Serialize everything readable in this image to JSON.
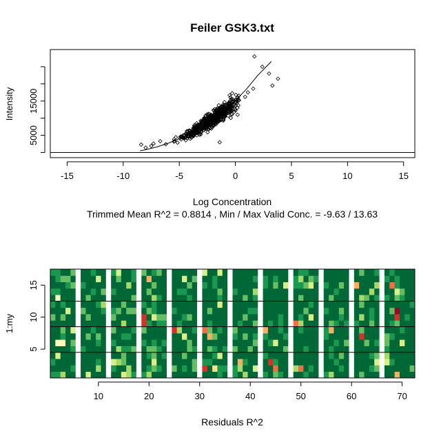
{
  "chart_data": [
    {
      "type": "scatter",
      "title": "Feiler GSK3.txt",
      "xlabel": "Log Concentration",
      "subtitle": "Trimmed Mean R^2 = 0.8814 , Min / Max Valid Conc. = -9.63 / 13.63",
      "ylabel": "Intensity",
      "xlim": [
        -16.5,
        16
      ],
      "ylim": [
        -1500,
        30000
      ],
      "x_ticks": [
        -15,
        -10,
        -5,
        0,
        5,
        10,
        15
      ],
      "y_ticks": [
        5000,
        15000
      ],
      "y_minor_ticks": [
        0,
        10000,
        20000,
        25000
      ],
      "point_shape": "open-diamond",
      "fit_curve": {
        "x": [
          -8.5,
          -8,
          -7,
          -6,
          -5,
          -4,
          -3,
          -2,
          -1,
          0,
          1,
          2,
          3.2
        ],
        "y": [
          500,
          800,
          1600,
          2700,
          4000,
          5600,
          7500,
          9700,
          12200,
          15100,
          18500,
          22500,
          26500
        ]
      },
      "outliers": {
        "x": [
          -8.4,
          -8.0,
          -7.5,
          -7.3,
          -6.7,
          -6.2,
          -2.8,
          -1.4,
          0.2,
          1.7,
          2.4,
          3.0,
          3.8,
          3.3
        ],
        "y": [
          2300,
          1400,
          1900,
          2600,
          3300,
          2400,
          10000,
          3000,
          11000,
          28000,
          25000,
          23000,
          21500,
          19500
        ]
      },
      "n_points": 700
    },
    {
      "type": "heatmap",
      "title": "",
      "xlabel": "Residuals R^2",
      "ylabel": "1:my",
      "xlim": [
        0.5,
        72.5
      ],
      "ylim": [
        0.5,
        17.5
      ],
      "x_ticks": [
        10,
        20,
        30,
        40,
        50,
        60,
        70
      ],
      "y_ticks": [
        5,
        10,
        15
      ],
      "columns": 72,
      "rows": 17,
      "white_columns": [
        6,
        12,
        18,
        24,
        30,
        36,
        42,
        48,
        54,
        60,
        66
      ],
      "row_divider_lines": [
        4.5,
        8.5,
        12.5
      ],
      "color_scale": [
        "#006837",
        "#1a9850",
        "#66bd63",
        "#a6d96a",
        "#d9ef8b",
        "#ffffbf",
        "#fee08b",
        "#fdae61",
        "#f46d43",
        "#d73027",
        "#a50026"
      ],
      "dominant_color": "#006837",
      "highlight_cells": [
        {
          "col": 19,
          "row": 10,
          "color": "#d73027"
        },
        {
          "col": 19,
          "row": 9,
          "color": "#d73027"
        },
        {
          "col": 20,
          "row": 16,
          "color": "#fdae61"
        },
        {
          "col": 25,
          "row": 8,
          "color": "#d73027"
        },
        {
          "col": 31,
          "row": 8,
          "color": "#f46d43"
        },
        {
          "col": 32,
          "row": 7,
          "color": "#fdae61"
        },
        {
          "col": 31,
          "row": 2,
          "color": "#d73027"
        },
        {
          "col": 33,
          "row": 2,
          "color": "#fee08b"
        },
        {
          "col": 38,
          "row": 3,
          "color": "#fdae61"
        },
        {
          "col": 43,
          "row": 8,
          "color": "#fdae61"
        },
        {
          "col": 44,
          "row": 3,
          "color": "#d73027"
        },
        {
          "col": 45,
          "row": 2,
          "color": "#f46d43"
        },
        {
          "col": 49,
          "row": 9,
          "color": "#f46d43"
        },
        {
          "col": 50,
          "row": 2,
          "color": "#f46d43"
        },
        {
          "col": 56,
          "row": 8,
          "color": "#fdae61"
        },
        {
          "col": 61,
          "row": 15,
          "color": "#fdae61"
        },
        {
          "col": 62,
          "row": 7,
          "color": "#d73027"
        },
        {
          "col": 68,
          "row": 15,
          "color": "#f46d43"
        },
        {
          "col": 69,
          "row": 11,
          "color": "#a50026"
        },
        {
          "col": 69,
          "row": 10,
          "color": "#d73027"
        },
        {
          "col": 69,
          "row": 1,
          "color": "#fdae61"
        },
        {
          "col": 2,
          "row": 13,
          "color": "#ffffbf"
        },
        {
          "col": 3,
          "row": 6,
          "color": "#ffffbf"
        },
        {
          "col": 2,
          "row": 6,
          "color": "#ffffbf"
        },
        {
          "col": 13,
          "row": 3,
          "color": "#d9ef8b"
        },
        {
          "col": 21,
          "row": 3,
          "color": "#d9ef8b"
        },
        {
          "col": 27,
          "row": 7,
          "color": "#d9ef8b"
        },
        {
          "col": 52,
          "row": 15,
          "color": "#d9ef8b"
        }
      ]
    }
  ]
}
